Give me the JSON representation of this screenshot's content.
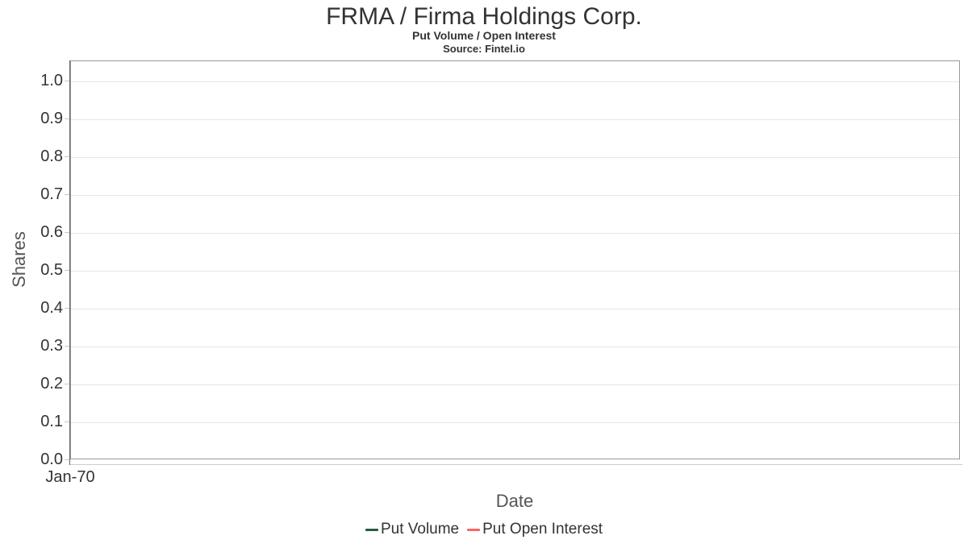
{
  "chart": {
    "title": "FRMA / Firma Holdings Corp.",
    "subtitle": "Put Volume / Open Interest",
    "source": "Source: Fintel.io",
    "xlabel": "Date",
    "ylabel": "Shares"
  },
  "chart_data": {
    "type": "line",
    "title": "FRMA / Firma Holdings Corp.",
    "subtitle": "Put Volume / Open Interest",
    "source": "Source: Fintel.io",
    "xlabel": "Date",
    "ylabel": "Shares",
    "x_tick_labels": [
      "Jan-70"
    ],
    "y_tick_labels": [
      "0.0",
      "0.1",
      "0.2",
      "0.3",
      "0.4",
      "0.5",
      "0.6",
      "0.7",
      "0.8",
      "0.9",
      "1.0"
    ],
    "ylim": [
      0,
      1.053
    ],
    "grid": true,
    "plot_border_color": "#999999",
    "gridline_color": "#e6e6e6",
    "legend_position": "bottom",
    "series": [
      {
        "name": "Put Volume",
        "color": "#275b40",
        "x": [],
        "values": []
      },
      {
        "name": "Put Open Interest",
        "color": "#fa6565",
        "x": [],
        "values": []
      }
    ]
  }
}
